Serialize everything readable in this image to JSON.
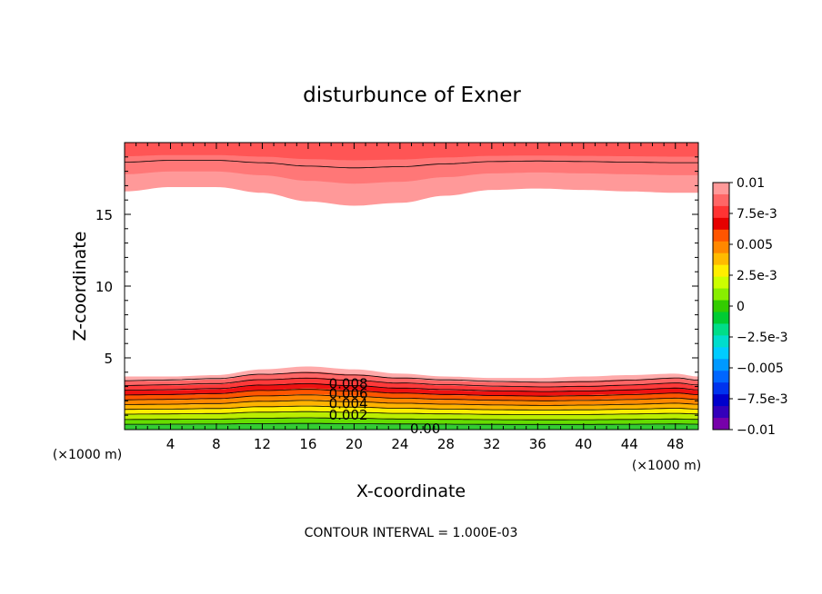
{
  "chart_data": {
    "type": "heatmap",
    "title": "disturbunce of Exner",
    "xlabel": "X-coordinate",
    "ylabel": "Z-coordinate",
    "x_unit_label": "(×1000 m)",
    "z_unit_label": "(×1000 m)",
    "xlim": [
      0,
      50
    ],
    "ylim": [
      0,
      20
    ],
    "x_ticks": [
      4,
      8,
      12,
      16,
      20,
      24,
      28,
      32,
      36,
      40,
      44,
      48
    ],
    "x_tick_labels": [
      "4",
      "8",
      "12",
      "16",
      "20",
      "24",
      "28",
      "32",
      "36",
      "40",
      "44",
      "48"
    ],
    "y_ticks": [
      5,
      10,
      15
    ],
    "y_tick_labels": [
      "5",
      "10",
      "15"
    ],
    "footer": "CONTOUR INTERVAL = 1.000E-03",
    "contour_labels": [
      {
        "text": "0.008",
        "x": 19.5,
        "z": 3.2
      },
      {
        "text": "0.006",
        "x": 19.5,
        "z": 2.5
      },
      {
        "text": "0.004",
        "x": 19.5,
        "z": 1.8
      },
      {
        "text": "0.002",
        "x": 19.5,
        "z": 1.0
      },
      {
        "text": "0.00",
        "x": 26.2,
        "z": 0.05
      }
    ],
    "colorbar": {
      "labels": [
        "0.01",
        "7.5e-3",
        "0.005",
        "2.5e-3",
        "0",
        "−2.5e-3",
        "−0.005",
        "−7.5e-3",
        "−0.01"
      ],
      "colors": [
        "#ff9999",
        "#ff6666",
        "#ff3333",
        "#e60000",
        "#ff5500",
        "#ff8800",
        "#ffbb00",
        "#ffee00",
        "#ccff00",
        "#88ee00",
        "#33cc00",
        "#00cc33",
        "#00dd88",
        "#00ddcc",
        "#00ccff",
        "#0099ff",
        "#0066ff",
        "#0033ee",
        "#0000cc",
        "#3300bb",
        "#7700aa"
      ]
    },
    "layers": {
      "upper_edge_x": [
        0,
        4,
        8,
        12,
        16,
        20,
        24,
        28,
        32,
        36,
        40,
        44,
        48,
        50
      ],
      "upper_edge_z": [
        16.6,
        16.9,
        16.9,
        16.5,
        15.9,
        15.6,
        15.8,
        16.3,
        16.7,
        16.8,
        16.7,
        16.6,
        16.5,
        16.5
      ],
      "lower_edge_x": [
        0,
        4,
        8,
        12,
        16,
        20,
        24,
        28,
        32,
        36,
        40,
        44,
        48,
        50
      ],
      "lower_edge_z": [
        3.7,
        3.7,
        3.8,
        4.2,
        4.4,
        4.2,
        3.9,
        3.7,
        3.6,
        3.6,
        3.7,
        3.8,
        3.9,
        3.7
      ]
    }
  }
}
